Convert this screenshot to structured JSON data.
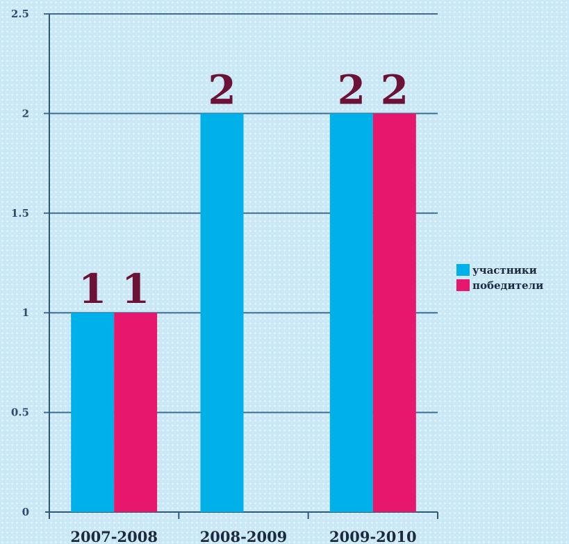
{
  "chart_data": {
    "type": "bar",
    "categories": [
      "2007-2008",
      "2008-2009",
      "2009-2010"
    ],
    "series": [
      {
        "name": "участники",
        "values": [
          1,
          2,
          2
        ],
        "color": "#00b0e8"
      },
      {
        "name": "победители",
        "values": [
          1,
          null,
          2
        ],
        "color": "#e8176e"
      }
    ],
    "data_labels": [
      [
        "1",
        "2",
        "2"
      ],
      [
        "1",
        "",
        "2"
      ]
    ],
    "ylim": [
      0,
      2.5
    ],
    "yticks": [
      "0",
      "0.5",
      "1",
      "1.5",
      "2",
      "2.5"
    ],
    "grid": true,
    "legend": "right",
    "title": "",
    "xlabel": "",
    "ylabel": ""
  }
}
